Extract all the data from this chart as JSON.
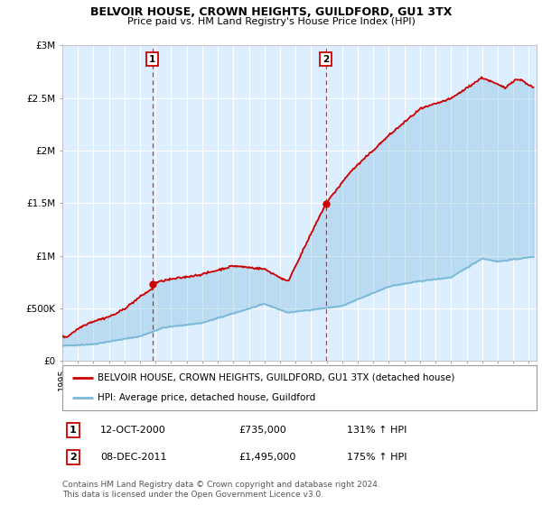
{
  "title": "BELVOIR HOUSE, CROWN HEIGHTS, GUILDFORD, GU1 3TX",
  "subtitle": "Price paid vs. HM Land Registry's House Price Index (HPI)",
  "ylabel_ticks": [
    "£0",
    "£500K",
    "£1M",
    "£1.5M",
    "£2M",
    "£2.5M",
    "£3M"
  ],
  "ylabel_values": [
    0,
    500000,
    1000000,
    1500000,
    2000000,
    2500000,
    3000000
  ],
  "ylim": [
    0,
    3000000
  ],
  "xlim_start": 1995.0,
  "xlim_end": 2025.5,
  "hpi_color": "#7ab8d9",
  "property_color": "#cc0000",
  "dashed_line_color": "#cc0000",
  "plot_bg_color": "#ddeeff",
  "legend_label_property": "BELVOIR HOUSE, CROWN HEIGHTS, GUILDFORD, GU1 3TX (detached house)",
  "legend_label_hpi": "HPI: Average price, detached house, Guildford",
  "sale1_label": "1",
  "sale1_date": "12-OCT-2000",
  "sale1_price": "£735,000",
  "sale1_hpi": "131% ↑ HPI",
  "sale1_x": 2000.79,
  "sale1_y": 735000,
  "sale2_label": "2",
  "sale2_date": "08-DEC-2011",
  "sale2_price": "£1,495,000",
  "sale2_hpi": "175% ↑ HPI",
  "sale2_x": 2011.94,
  "sale2_y": 1495000,
  "footnote": "Contains HM Land Registry data © Crown copyright and database right 2024.\nThis data is licensed under the Open Government Licence v3.0.",
  "xticks": [
    1995,
    1996,
    1997,
    1998,
    1999,
    2000,
    2001,
    2002,
    2003,
    2004,
    2005,
    2006,
    2007,
    2008,
    2009,
    2010,
    2011,
    2012,
    2013,
    2014,
    2015,
    2016,
    2017,
    2018,
    2019,
    2020,
    2021,
    2022,
    2023,
    2024,
    2025
  ]
}
